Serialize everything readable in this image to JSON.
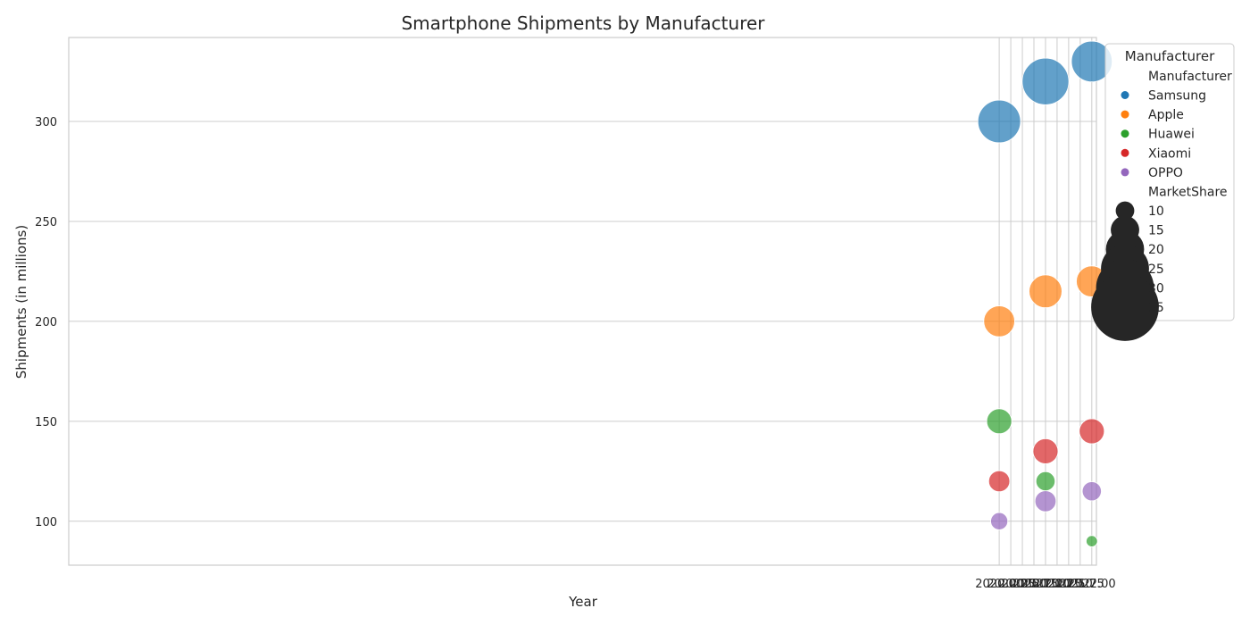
{
  "chart_data": {
    "type": "scatter",
    "title": "Smartphone Shipments by Manufacturer",
    "xlabel": "Year",
    "ylabel": "Shipments (in millions)",
    "xlim": [
      1999.9,
      2022.1
    ],
    "ylim": [
      78,
      342
    ],
    "xticks": [
      2020.0,
      2020.25,
      2020.5,
      2020.75,
      2021.0,
      2021.25,
      2021.5,
      2021.75,
      2022.0
    ],
    "xtick_labels": [
      "2020.00",
      "2020.25",
      "2020.50",
      "2020.75",
      "2021.00",
      "2021.25",
      "2021.50",
      "2021.75",
      "2022.00"
    ],
    "yticks": [
      100,
      150,
      200,
      250,
      300
    ],
    "ytick_labels": [
      "100",
      "150",
      "200",
      "250",
      "300"
    ],
    "grid": true,
    "legend_position": "outside-right",
    "legend": {
      "title": "Manufacturer",
      "hue_title": "Manufacturer",
      "size_title": "MarketShare",
      "size_entries": [
        {
          "value": 10,
          "label": "10"
        },
        {
          "value": 15,
          "label": "15"
        },
        {
          "value": 20,
          "label": "20"
        },
        {
          "value": 25,
          "label": "25"
        },
        {
          "value": 30,
          "label": "30"
        },
        {
          "value": 35,
          "label": "35"
        }
      ]
    },
    "size_field": "MarketShare",
    "series": [
      {
        "name": "Samsung",
        "color": "#1f77b4",
        "points": [
          {
            "x": 2020,
            "y": 300,
            "size": 20
          },
          {
            "x": 2021,
            "y": 320,
            "size": 22
          },
          {
            "x": 2022,
            "y": 330,
            "size": 19
          }
        ]
      },
      {
        "name": "Apple",
        "color": "#ff7f0e",
        "points": [
          {
            "x": 2020,
            "y": 200,
            "size": 14
          },
          {
            "x": 2021,
            "y": 215,
            "size": 15
          },
          {
            "x": 2022,
            "y": 220,
            "size": 14
          }
        ]
      },
      {
        "name": "Huawei",
        "color": "#2ca02c",
        "points": [
          {
            "x": 2020,
            "y": 150,
            "size": 11
          },
          {
            "x": 2021,
            "y": 120,
            "size": 8
          },
          {
            "x": 2022,
            "y": 90,
            "size": 4
          }
        ]
      },
      {
        "name": "Xiaomi",
        "color": "#d62728",
        "points": [
          {
            "x": 2020,
            "y": 120,
            "size": 9
          },
          {
            "x": 2021,
            "y": 135,
            "size": 11
          },
          {
            "x": 2022,
            "y": 145,
            "size": 11
          }
        ]
      },
      {
        "name": "OPPO",
        "color": "#9467bd",
        "points": [
          {
            "x": 2020,
            "y": 100,
            "size": 7
          },
          {
            "x": 2021,
            "y": 110,
            "size": 9
          },
          {
            "x": 2022,
            "y": 115,
            "size": 8
          }
        ]
      }
    ]
  }
}
